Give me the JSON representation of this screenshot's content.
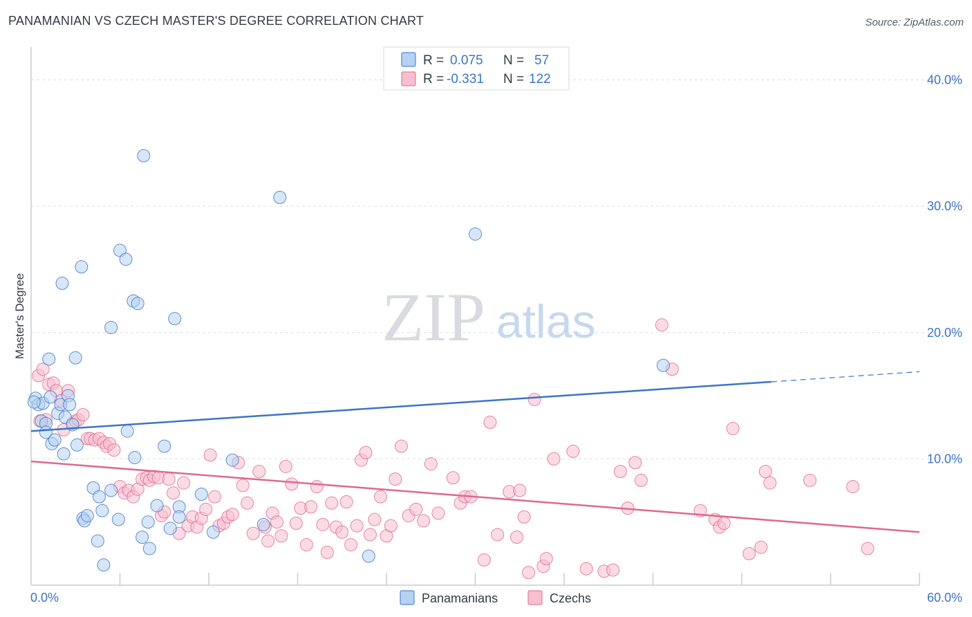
{
  "title": "PANAMANIAN VS CZECH MASTER'S DEGREE CORRELATION CHART",
  "source": "Source: ZipAtlas.com",
  "watermark": {
    "zip": "ZIP",
    "atlas": "atlas"
  },
  "colors": {
    "blue": "#3b74c4",
    "blue_fill": "#b6d1f2",
    "pink": "#e0678f",
    "pink_fill": "#f7bfd0",
    "grid": "#d9dde3"
  },
  "legend": {
    "rows": [
      {
        "r_label": "R =",
        "r_value": "0.075",
        "n_label": "N =",
        "n_value": "57"
      },
      {
        "r_label": "R =",
        "r_value": "-0.331",
        "n_label": "N =",
        "n_value": "122"
      }
    ]
  },
  "bottom_legend": [
    "Panamanians",
    "Czechs"
  ],
  "chart_data": {
    "type": "scatter",
    "title": "PANAMANIAN VS CZECH MASTER'S DEGREE CORRELATION CHART",
    "xlabel": "",
    "ylabel": "Master's Degree",
    "xlim": [
      0,
      60
    ],
    "ylim": [
      0,
      42
    ],
    "x_tick_labels": [
      "0.0%",
      "60.0%"
    ],
    "y_ticks": [
      10,
      20,
      30,
      40
    ],
    "y_tick_labels": [
      "10.0%",
      "20.0%",
      "30.0%",
      "40.0%"
    ],
    "grid": true,
    "series": [
      {
        "name": "Panamanians",
        "R": 0.075,
        "N": 57,
        "trend": {
          "x0": 0,
          "y0": 12.2,
          "x1": 50,
          "y1": 16.1,
          "dash_to_x": 60,
          "dash_to_y": 16.9
        },
        "points": [
          [
            0.3,
            14.8
          ],
          [
            0.5,
            14.3
          ],
          [
            0.7,
            13.0
          ],
          [
            0.8,
            14.4
          ],
          [
            1.0,
            12.8
          ],
          [
            1.0,
            12.1
          ],
          [
            1.2,
            17.9
          ],
          [
            1.3,
            14.9
          ],
          [
            1.4,
            11.2
          ],
          [
            1.6,
            11.5
          ],
          [
            1.8,
            13.6
          ],
          [
            2.0,
            14.3
          ],
          [
            2.2,
            10.4
          ],
          [
            2.3,
            13.3
          ],
          [
            2.5,
            15.0
          ],
          [
            2.6,
            14.3
          ],
          [
            2.8,
            12.7
          ],
          [
            3.0,
            18.0
          ],
          [
            3.1,
            11.1
          ],
          [
            3.4,
            25.2
          ],
          [
            2.1,
            23.9
          ],
          [
            3.5,
            5.3
          ],
          [
            3.6,
            5.1
          ],
          [
            3.8,
            5.5
          ],
          [
            4.2,
            7.7
          ],
          [
            4.5,
            3.5
          ],
          [
            4.6,
            7.0
          ],
          [
            4.8,
            5.9
          ],
          [
            4.9,
            1.6
          ],
          [
            5.4,
            7.5
          ],
          [
            5.9,
            5.2
          ],
          [
            5.4,
            20.4
          ],
          [
            6.0,
            26.5
          ],
          [
            6.4,
            25.8
          ],
          [
            6.5,
            12.2
          ],
          [
            6.9,
            22.5
          ],
          [
            7.0,
            10.1
          ],
          [
            7.2,
            22.3
          ],
          [
            7.5,
            3.8
          ],
          [
            7.6,
            34.0
          ],
          [
            7.9,
            5.0
          ],
          [
            8.0,
            2.9
          ],
          [
            8.5,
            6.3
          ],
          [
            9.0,
            11.0
          ],
          [
            9.4,
            4.5
          ],
          [
            9.7,
            21.1
          ],
          [
            10.0,
            6.2
          ],
          [
            10.0,
            5.4
          ],
          [
            11.5,
            7.2
          ],
          [
            12.3,
            4.2
          ],
          [
            13.6,
            9.9
          ],
          [
            15.7,
            4.8
          ],
          [
            16.8,
            30.7
          ],
          [
            22.8,
            2.3
          ],
          [
            30.0,
            27.8
          ],
          [
            42.7,
            17.4
          ],
          [
            0.2,
            14.5
          ]
        ]
      },
      {
        "name": "Czechs",
        "R": -0.331,
        "N": 122,
        "trend": {
          "x0": 0,
          "y0": 9.8,
          "x1": 60,
          "y1": 4.2
        },
        "points": [
          [
            0.5,
            16.6
          ],
          [
            0.8,
            17.1
          ],
          [
            1.0,
            13.1
          ],
          [
            1.2,
            15.9
          ],
          [
            1.5,
            16.0
          ],
          [
            1.7,
            15.4
          ],
          [
            2.0,
            14.6
          ],
          [
            2.2,
            12.3
          ],
          [
            2.5,
            15.4
          ],
          [
            2.8,
            12.8
          ],
          [
            3.0,
            13.0
          ],
          [
            3.2,
            13.1
          ],
          [
            3.5,
            13.5
          ],
          [
            3.8,
            11.6
          ],
          [
            4.0,
            11.6
          ],
          [
            4.3,
            11.5
          ],
          [
            4.6,
            11.6
          ],
          [
            4.9,
            11.3
          ],
          [
            5.1,
            11.0
          ],
          [
            5.3,
            11.2
          ],
          [
            5.6,
            10.7
          ],
          [
            6.0,
            7.8
          ],
          [
            6.3,
            7.3
          ],
          [
            6.6,
            7.5
          ],
          [
            6.9,
            7.0
          ],
          [
            7.2,
            7.6
          ],
          [
            7.5,
            8.4
          ],
          [
            7.8,
            8.5
          ],
          [
            8.0,
            8.3
          ],
          [
            8.3,
            8.6
          ],
          [
            8.6,
            8.5
          ],
          [
            8.8,
            5.5
          ],
          [
            9.0,
            5.8
          ],
          [
            9.3,
            8.4
          ],
          [
            9.6,
            7.3
          ],
          [
            10.0,
            4.1
          ],
          [
            10.3,
            8.1
          ],
          [
            10.6,
            4.7
          ],
          [
            10.9,
            5.4
          ],
          [
            11.2,
            4.6
          ],
          [
            11.5,
            5.3
          ],
          [
            11.8,
            6.0
          ],
          [
            12.1,
            10.3
          ],
          [
            12.4,
            7.0
          ],
          [
            12.7,
            4.7
          ],
          [
            13.0,
            4.9
          ],
          [
            13.3,
            5.4
          ],
          [
            13.6,
            5.6
          ],
          [
            14.0,
            9.7
          ],
          [
            14.3,
            7.9
          ],
          [
            14.6,
            6.5
          ],
          [
            15.0,
            4.1
          ],
          [
            15.4,
            9.0
          ],
          [
            15.8,
            4.6
          ],
          [
            16.0,
            3.5
          ],
          [
            16.3,
            5.7
          ],
          [
            16.6,
            5.0
          ],
          [
            16.9,
            3.9
          ],
          [
            17.2,
            9.4
          ],
          [
            17.6,
            8.0
          ],
          [
            17.9,
            4.9
          ],
          [
            18.2,
            6.1
          ],
          [
            18.6,
            3.2
          ],
          [
            18.9,
            6.2
          ],
          [
            19.3,
            7.8
          ],
          [
            19.7,
            4.8
          ],
          [
            20.0,
            2.6
          ],
          [
            20.3,
            6.5
          ],
          [
            20.6,
            4.6
          ],
          [
            21.0,
            4.2
          ],
          [
            21.3,
            6.6
          ],
          [
            21.6,
            3.2
          ],
          [
            22.0,
            4.7
          ],
          [
            22.3,
            9.9
          ],
          [
            22.6,
            10.5
          ],
          [
            22.9,
            4.0
          ],
          [
            23.2,
            5.2
          ],
          [
            23.6,
            7.0
          ],
          [
            24.0,
            3.9
          ],
          [
            24.3,
            4.7
          ],
          [
            24.6,
            8.4
          ],
          [
            25.0,
            11.0
          ],
          [
            25.5,
            5.5
          ],
          [
            26.0,
            6.0
          ],
          [
            26.5,
            5.1
          ],
          [
            27.0,
            9.6
          ],
          [
            27.5,
            5.7
          ],
          [
            28.5,
            8.5
          ],
          [
            29.0,
            6.5
          ],
          [
            29.3,
            7.0
          ],
          [
            29.7,
            7.0
          ],
          [
            30.6,
            2.0
          ],
          [
            31.0,
            12.9
          ],
          [
            31.5,
            4.0
          ],
          [
            32.3,
            7.4
          ],
          [
            32.8,
            3.8
          ],
          [
            33.0,
            7.5
          ],
          [
            33.3,
            5.4
          ],
          [
            33.6,
            1.0
          ],
          [
            34.0,
            14.7
          ],
          [
            34.6,
            1.5
          ],
          [
            34.8,
            2.1
          ],
          [
            35.3,
            10.0
          ],
          [
            36.6,
            10.6
          ],
          [
            37.5,
            1.3
          ],
          [
            38.7,
            1.1
          ],
          [
            39.3,
            1.2
          ],
          [
            39.8,
            9.0
          ],
          [
            40.3,
            6.1
          ],
          [
            40.8,
            9.7
          ],
          [
            41.2,
            8.3
          ],
          [
            42.6,
            20.6
          ],
          [
            43.3,
            17.1
          ],
          [
            45.2,
            5.9
          ],
          [
            46.2,
            5.2
          ],
          [
            46.5,
            4.6
          ],
          [
            46.8,
            4.9
          ],
          [
            47.4,
            12.4
          ],
          [
            48.5,
            2.5
          ],
          [
            49.3,
            3.0
          ],
          [
            49.6,
            9.0
          ],
          [
            49.9,
            8.1
          ],
          [
            52.6,
            8.3
          ],
          [
            55.5,
            7.8
          ],
          [
            56.5,
            2.9
          ],
          [
            0.6,
            13.0
          ]
        ]
      }
    ]
  }
}
